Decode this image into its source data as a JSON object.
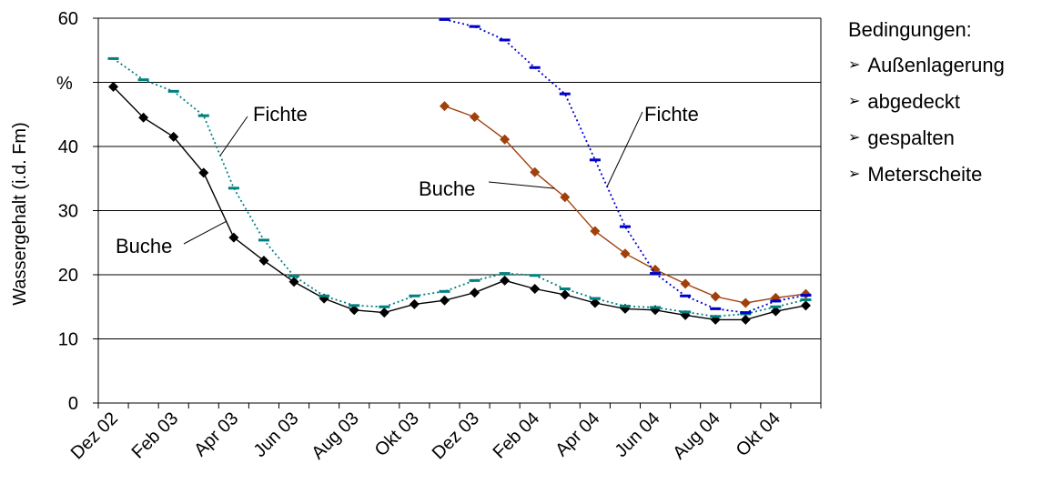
{
  "chart_data": {
    "type": "line",
    "ylabel": "Wassergehalt (i.d. Fm)",
    "y_unit": "%",
    "ylim": [
      0,
      60
    ],
    "yticks": [
      0,
      10,
      20,
      30,
      40,
      50,
      60
    ],
    "grid": true,
    "x_tick_labels": [
      "Dez 02",
      "Feb 03",
      "Apr 03",
      "Jun 03",
      "Aug 03",
      "Okt 03",
      "Dez 03",
      "Feb 04",
      "Apr 04",
      "Jun 04",
      "Aug 04",
      "Okt 04"
    ],
    "x_points": [
      "Dez 02",
      "Jan 03",
      "Feb 03",
      "Mar 03",
      "Apr 03",
      "Mai 03",
      "Jun 03",
      "Jul 03",
      "Aug 03",
      "Sep 03",
      "Okt 03",
      "Nov 03",
      "Dez 03",
      "Jan 04",
      "Feb 04",
      "Mar 04",
      "Apr 04",
      "Mai 04",
      "Jun 04",
      "Jul 04",
      "Aug 04",
      "Sep 04",
      "Okt 04",
      "Nov 04"
    ],
    "series": [
      {
        "name": "Buche",
        "color": "#000000",
        "marker": "diamond",
        "line": "solid",
        "values": [
          49.3,
          44.5,
          41.5,
          35.9,
          25.8,
          22.2,
          18.9,
          16.3,
          14.5,
          14.1,
          15.4,
          16.0,
          17.2,
          19.1,
          17.8,
          16.9,
          15.6,
          14.7,
          14.5,
          13.7,
          13.0,
          13.0,
          14.3,
          15.2
        ]
      },
      {
        "name": "Fichte",
        "color": "#008080",
        "marker": "dash",
        "line": "dotted",
        "values": [
          53.7,
          50.4,
          48.6,
          44.8,
          33.5,
          25.4,
          19.8,
          16.7,
          15.2,
          15.0,
          16.7,
          17.4,
          19.1,
          20.2,
          19.9,
          17.8,
          16.3,
          15.1,
          14.9,
          14.2,
          13.5,
          13.9,
          15.0,
          16.1
        ]
      },
      {
        "name": "Buche",
        "color": "#A0400A",
        "marker": "diamond",
        "line": "solid",
        "start_index": 11,
        "values": [
          46.3,
          44.6,
          41.1,
          36.0,
          32.1,
          26.8,
          23.3,
          20.8,
          18.6,
          16.6,
          15.6,
          16.4,
          17.0
        ]
      },
      {
        "name": "Fichte",
        "color": "#0000CC",
        "marker": "dash",
        "line": "dotted",
        "start_index": 11,
        "values": [
          59.8,
          58.7,
          56.6,
          52.3,
          48.2,
          37.9,
          27.5,
          20.2,
          16.7,
          14.7,
          14.1,
          15.9,
          16.8
        ]
      }
    ],
    "annotations": [
      {
        "text": "Fichte",
        "series": 1
      },
      {
        "text": "Buche",
        "series": 0
      },
      {
        "text": "Buche",
        "series": 2
      },
      {
        "text": "Fichte",
        "series": 3
      }
    ]
  },
  "legend": {
    "title": "Bedingungen:",
    "bullet": "➢",
    "items": [
      "Außenlagerung",
      "abgedeckt",
      "gespalten",
      "Meterscheite"
    ]
  }
}
